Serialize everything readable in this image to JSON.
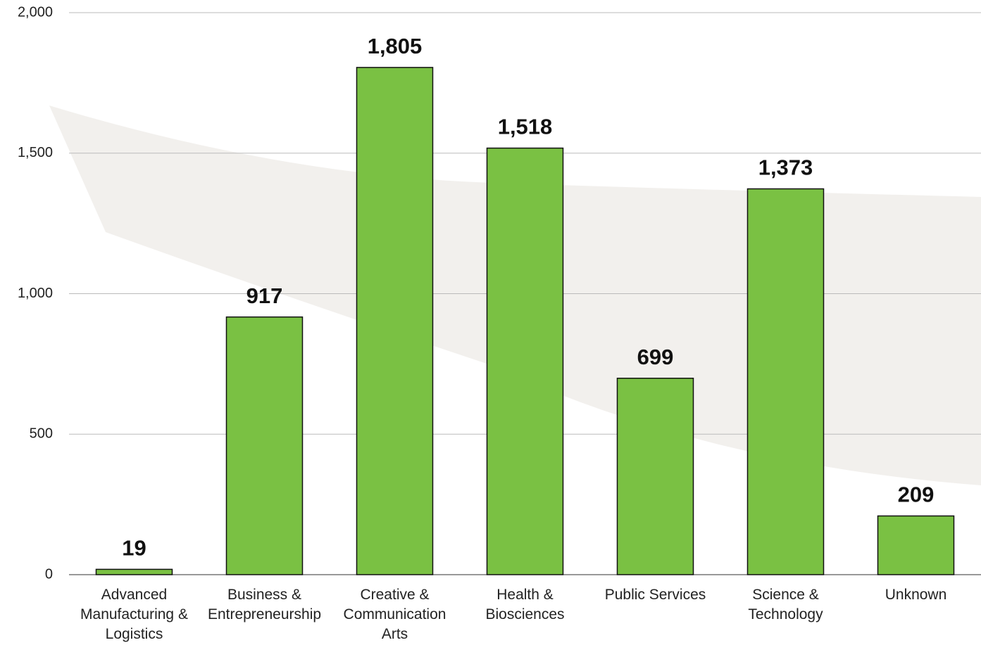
{
  "chart_data": {
    "type": "bar",
    "categories": [
      "Advanced Manufacturing & Logistics",
      "Business & Entrepreneurship",
      "Creative & Communication Arts",
      "Health & Biosciences",
      "Public Services",
      "Science & Technology",
      "Unknown"
    ],
    "values": [
      19,
      917,
      1805,
      1518,
      699,
      1373,
      209
    ],
    "value_labels": [
      "19",
      "917",
      "1,805",
      "1,518",
      "699",
      "1,373",
      "209"
    ],
    "color": "#7ac143",
    "ylim": [
      0,
      2000
    ],
    "yticks": [
      0,
      500,
      {
        "value": 1000,
        "label": "1,000"
      },
      {
        "value": 1500,
        "label": "1,500"
      },
      {
        "value": 2000,
        "label": "2,000"
      }
    ],
    "grid": true
  }
}
